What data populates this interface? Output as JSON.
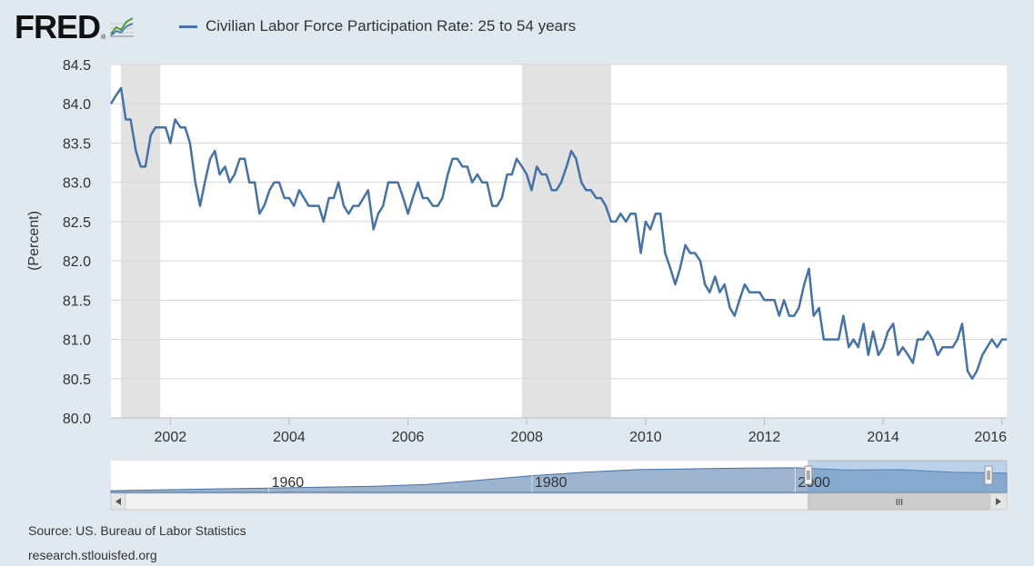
{
  "logo": {
    "text": "FRED",
    "reg": "®",
    "icon": "chart-line-icon"
  },
  "legend": {
    "label": "Civilian Labor Force Participation Rate: 25 to 54 years",
    "color": "#4572a7"
  },
  "chart_data": {
    "type": "line",
    "ylabel": "(Percent)",
    "ylim": [
      80.0,
      84.5
    ],
    "xlim": [
      2001.0,
      2016.08
    ],
    "yticks": [
      "80.0",
      "80.5",
      "81.0",
      "81.5",
      "82.0",
      "82.5",
      "83.0",
      "83.5",
      "84.0",
      "84.5"
    ],
    "xticks": [
      "2002",
      "2004",
      "2006",
      "2008",
      "2010",
      "2012",
      "2014",
      "2016"
    ],
    "grid": true,
    "recessions": [
      [
        2001.17,
        2001.83
      ],
      [
        2007.92,
        2009.42
      ]
    ],
    "series": [
      {
        "name": "Civilian Labor Force Participation Rate: 25 to 54 years",
        "color": "#4572a7",
        "points": [
          [
            2001.0,
            84.0
          ],
          [
            2001.08,
            84.1
          ],
          [
            2001.17,
            84.2
          ],
          [
            2001.25,
            83.8
          ],
          [
            2001.33,
            83.8
          ],
          [
            2001.42,
            83.4
          ],
          [
            2001.5,
            83.2
          ],
          [
            2001.58,
            83.2
          ],
          [
            2001.67,
            83.6
          ],
          [
            2001.75,
            83.7
          ],
          [
            2001.83,
            83.7
          ],
          [
            2001.92,
            83.7
          ],
          [
            2002.0,
            83.5
          ],
          [
            2002.08,
            83.8
          ],
          [
            2002.17,
            83.7
          ],
          [
            2002.25,
            83.7
          ],
          [
            2002.33,
            83.5
          ],
          [
            2002.42,
            83.0
          ],
          [
            2002.5,
            82.7
          ],
          [
            2002.58,
            83.0
          ],
          [
            2002.67,
            83.3
          ],
          [
            2002.75,
            83.4
          ],
          [
            2002.83,
            83.1
          ],
          [
            2002.92,
            83.2
          ],
          [
            2003.0,
            83.0
          ],
          [
            2003.08,
            83.1
          ],
          [
            2003.17,
            83.3
          ],
          [
            2003.25,
            83.3
          ],
          [
            2003.33,
            83.0
          ],
          [
            2003.42,
            83.0
          ],
          [
            2003.5,
            82.6
          ],
          [
            2003.58,
            82.7
          ],
          [
            2003.67,
            82.9
          ],
          [
            2003.75,
            83.0
          ],
          [
            2003.83,
            83.0
          ],
          [
            2003.92,
            82.8
          ],
          [
            2004.0,
            82.8
          ],
          [
            2004.08,
            82.7
          ],
          [
            2004.17,
            82.9
          ],
          [
            2004.25,
            82.8
          ],
          [
            2004.33,
            82.7
          ],
          [
            2004.42,
            82.7
          ],
          [
            2004.5,
            82.7
          ],
          [
            2004.58,
            82.5
          ],
          [
            2004.67,
            82.8
          ],
          [
            2004.75,
            82.8
          ],
          [
            2004.83,
            83.0
          ],
          [
            2004.92,
            82.7
          ],
          [
            2005.0,
            82.6
          ],
          [
            2005.08,
            82.7
          ],
          [
            2005.17,
            82.7
          ],
          [
            2005.25,
            82.8
          ],
          [
            2005.33,
            82.9
          ],
          [
            2005.42,
            82.4
          ],
          [
            2005.5,
            82.6
          ],
          [
            2005.58,
            82.7
          ],
          [
            2005.67,
            83.0
          ],
          [
            2005.75,
            83.0
          ],
          [
            2005.83,
            83.0
          ],
          [
            2005.92,
            82.8
          ],
          [
            2006.0,
            82.6
          ],
          [
            2006.08,
            82.8
          ],
          [
            2006.17,
            83.0
          ],
          [
            2006.25,
            82.8
          ],
          [
            2006.33,
            82.8
          ],
          [
            2006.42,
            82.7
          ],
          [
            2006.5,
            82.7
          ],
          [
            2006.58,
            82.8
          ],
          [
            2006.67,
            83.1
          ],
          [
            2006.75,
            83.3
          ],
          [
            2006.83,
            83.3
          ],
          [
            2006.92,
            83.2
          ],
          [
            2007.0,
            83.2
          ],
          [
            2007.08,
            83.0
          ],
          [
            2007.17,
            83.1
          ],
          [
            2007.25,
            83.0
          ],
          [
            2007.33,
            83.0
          ],
          [
            2007.42,
            82.7
          ],
          [
            2007.5,
            82.7
          ],
          [
            2007.58,
            82.8
          ],
          [
            2007.67,
            83.1
          ],
          [
            2007.75,
            83.1
          ],
          [
            2007.83,
            83.3
          ],
          [
            2007.92,
            83.2
          ],
          [
            2008.0,
            83.1
          ],
          [
            2008.08,
            82.9
          ],
          [
            2008.17,
            83.2
          ],
          [
            2008.25,
            83.1
          ],
          [
            2008.33,
            83.1
          ],
          [
            2008.42,
            82.9
          ],
          [
            2008.5,
            82.9
          ],
          [
            2008.58,
            83.0
          ],
          [
            2008.67,
            83.2
          ],
          [
            2008.75,
            83.4
          ],
          [
            2008.83,
            83.3
          ],
          [
            2008.92,
            83.0
          ],
          [
            2009.0,
            82.9
          ],
          [
            2009.08,
            82.9
          ],
          [
            2009.17,
            82.8
          ],
          [
            2009.25,
            82.8
          ],
          [
            2009.33,
            82.7
          ],
          [
            2009.42,
            82.5
          ],
          [
            2009.5,
            82.5
          ],
          [
            2009.58,
            82.6
          ],
          [
            2009.67,
            82.5
          ],
          [
            2009.75,
            82.6
          ],
          [
            2009.83,
            82.6
          ],
          [
            2009.92,
            82.1
          ],
          [
            2010.0,
            82.5
          ],
          [
            2010.08,
            82.4
          ],
          [
            2010.17,
            82.6
          ],
          [
            2010.25,
            82.6
          ],
          [
            2010.33,
            82.1
          ],
          [
            2010.42,
            81.9
          ],
          [
            2010.5,
            81.7
          ],
          [
            2010.58,
            81.9
          ],
          [
            2010.67,
            82.2
          ],
          [
            2010.75,
            82.1
          ],
          [
            2010.83,
            82.1
          ],
          [
            2010.92,
            82.0
          ],
          [
            2011.0,
            81.7
          ],
          [
            2011.08,
            81.6
          ],
          [
            2011.17,
            81.8
          ],
          [
            2011.25,
            81.6
          ],
          [
            2011.33,
            81.7
          ],
          [
            2011.42,
            81.4
          ],
          [
            2011.5,
            81.3
          ],
          [
            2011.58,
            81.5
          ],
          [
            2011.67,
            81.7
          ],
          [
            2011.75,
            81.6
          ],
          [
            2011.83,
            81.6
          ],
          [
            2011.92,
            81.6
          ],
          [
            2012.0,
            81.5
          ],
          [
            2012.08,
            81.5
          ],
          [
            2012.17,
            81.5
          ],
          [
            2012.25,
            81.3
          ],
          [
            2012.33,
            81.5
          ],
          [
            2012.42,
            81.3
          ],
          [
            2012.5,
            81.3
          ],
          [
            2012.58,
            81.4
          ],
          [
            2012.67,
            81.7
          ],
          [
            2012.75,
            81.9
          ],
          [
            2012.83,
            81.3
          ],
          [
            2012.92,
            81.4
          ],
          [
            2013.0,
            81.0
          ],
          [
            2013.08,
            81.0
          ],
          [
            2013.17,
            81.0
          ],
          [
            2013.25,
            81.0
          ],
          [
            2013.33,
            81.3
          ],
          [
            2013.42,
            80.9
          ],
          [
            2013.5,
            81.0
          ],
          [
            2013.58,
            80.9
          ],
          [
            2013.67,
            81.2
          ],
          [
            2013.75,
            80.8
          ],
          [
            2013.83,
            81.1
          ],
          [
            2013.92,
            80.8
          ],
          [
            2014.0,
            80.9
          ],
          [
            2014.08,
            81.1
          ],
          [
            2014.17,
            81.2
          ],
          [
            2014.25,
            80.8
          ],
          [
            2014.33,
            80.9
          ],
          [
            2014.42,
            80.8
          ],
          [
            2014.5,
            80.7
          ],
          [
            2014.58,
            81.0
          ],
          [
            2014.67,
            81.0
          ],
          [
            2014.75,
            81.1
          ],
          [
            2014.83,
            81.0
          ],
          [
            2014.92,
            80.8
          ],
          [
            2015.0,
            80.9
          ],
          [
            2015.08,
            80.9
          ],
          [
            2015.17,
            80.9
          ],
          [
            2015.25,
            81.0
          ],
          [
            2015.33,
            81.2
          ],
          [
            2015.42,
            80.6
          ],
          [
            2015.5,
            80.5
          ],
          [
            2015.58,
            80.6
          ],
          [
            2015.67,
            80.8
          ],
          [
            2015.75,
            80.9
          ],
          [
            2015.83,
            81.0
          ],
          [
            2015.92,
            80.9
          ],
          [
            2016.0,
            81.0
          ],
          [
            2016.08,
            81.0
          ]
        ]
      }
    ]
  },
  "navigator": {
    "xticks": [
      "1960",
      "1980",
      "2000"
    ],
    "xlim": [
      1948,
      2016.08
    ],
    "selection": [
      2001.0,
      2016.08
    ],
    "ylim": [
      70,
      85
    ],
    "points": [
      [
        1948,
        71.0
      ],
      [
        1952,
        71.5
      ],
      [
        1956,
        72.0
      ],
      [
        1960,
        72.5
      ],
      [
        1964,
        73.0
      ],
      [
        1968,
        73.5
      ],
      [
        1972,
        74.5
      ],
      [
        1976,
        77.0
      ],
      [
        1980,
        79.5
      ],
      [
        1984,
        81.5
      ],
      [
        1988,
        83.0
      ],
      [
        1992,
        83.4
      ],
      [
        1996,
        83.8
      ],
      [
        2000,
        84.0
      ],
      [
        2004,
        82.8
      ],
      [
        2008,
        83.0
      ],
      [
        2012,
        81.5
      ],
      [
        2016.08,
        81.0
      ]
    ],
    "scroll_left_icon": "arrow-left-icon",
    "scroll_right_icon": "arrow-right-icon",
    "grip_icon": "grip-icon",
    "grip_text": "III"
  },
  "footer": {
    "source": "Source: US. Bureau of Labor Statistics",
    "site": "research.stlouisfed.org"
  }
}
